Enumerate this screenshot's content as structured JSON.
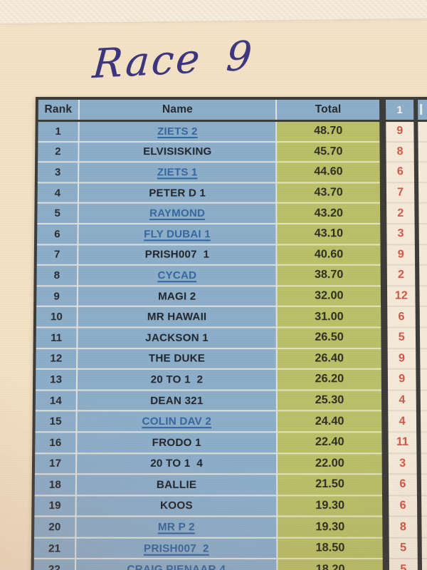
{
  "photo": {
    "handwritten_title": "Race 9"
  },
  "table": {
    "headers": {
      "rank": "Rank",
      "name": "Name",
      "total": "Total",
      "race1": "1"
    },
    "rows": [
      {
        "rank": "1",
        "name": "ZIETS 2",
        "total": "48.70",
        "race1": "9",
        "link": true
      },
      {
        "rank": "2",
        "name": "ELVISISKING",
        "total": "45.70",
        "race1": "8",
        "link": false
      },
      {
        "rank": "3",
        "name": "ZIETS 1",
        "total": "44.60",
        "race1": "6",
        "link": true
      },
      {
        "rank": "4",
        "name": "PETER D 1",
        "total": "43.70",
        "race1": "7",
        "link": false
      },
      {
        "rank": "5",
        "name": "RAYMOND",
        "total": "43.20",
        "race1": "2",
        "link": true
      },
      {
        "rank": "6",
        "name": "FLY DUBAI 1",
        "total": "43.10",
        "race1": "3",
        "link": true
      },
      {
        "rank": "7",
        "name": "PRISH007  1",
        "total": "40.60",
        "race1": "9",
        "link": false
      },
      {
        "rank": "8",
        "name": "CYCAD",
        "total": "38.70",
        "race1": "2",
        "link": true
      },
      {
        "rank": "9",
        "name": "MAGI 2",
        "total": "32.00",
        "race1": "12",
        "link": false
      },
      {
        "rank": "10",
        "name": "MR HAWAII",
        "total": "31.00",
        "race1": "6",
        "link": false
      },
      {
        "rank": "11",
        "name": "JACKSON 1",
        "total": "26.50",
        "race1": "5",
        "link": false
      },
      {
        "rank": "12",
        "name": "THE DUKE",
        "total": "26.40",
        "race1": "9",
        "link": false
      },
      {
        "rank": "13",
        "name": "20 TO 1  2",
        "total": "26.20",
        "race1": "9",
        "link": false
      },
      {
        "rank": "14",
        "name": "DEAN 321",
        "total": "25.30",
        "race1": "4",
        "link": false
      },
      {
        "rank": "15",
        "name": "COLIN DAV 2",
        "total": "24.40",
        "race1": "4",
        "link": true
      },
      {
        "rank": "16",
        "name": "FRODO 1",
        "total": "22.40",
        "race1": "11",
        "link": false
      },
      {
        "rank": "17",
        "name": "20 TO 1  4",
        "total": "22.00",
        "race1": "3",
        "link": false
      },
      {
        "rank": "18",
        "name": "BALLIE",
        "total": "21.50",
        "race1": "6",
        "link": false
      },
      {
        "rank": "19",
        "name": "KOOS",
        "total": "19.30",
        "race1": "6",
        "link": false
      },
      {
        "rank": "20",
        "name": "MR P 2",
        "total": "19.30",
        "race1": "8",
        "link": true
      },
      {
        "rank": "21",
        "name": "PRISH007  2",
        "total": "18.50",
        "race1": "5",
        "link": true
      },
      {
        "rank": "22",
        "name": "CRAIG PIENAAR 4",
        "total": "18.20",
        "race1": "5",
        "link": true
      }
    ]
  },
  "colors": {
    "paper": "#f2e1c4",
    "paper_top": "#f4e9d4",
    "ink": "#3a337c",
    "cell_blue": "#8badc9",
    "cell_green": "#b9be68",
    "col1_bg": "#f4e9d8",
    "red_number": "#cf5645",
    "link_blue": "#33669e",
    "border_dark": "#3b3a37"
  }
}
